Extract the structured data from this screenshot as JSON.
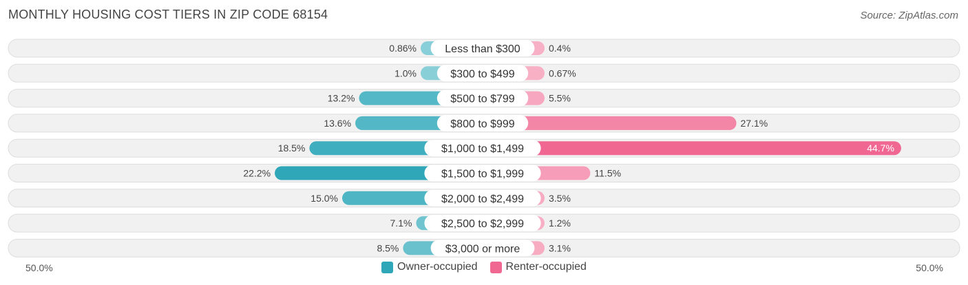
{
  "header": {
    "title": "MONTHLY HOUSING COST TIERS IN ZIP CODE 68154",
    "source": "Source: ZipAtlas.com"
  },
  "axis": {
    "left_label": "50.0%",
    "right_label": "50.0%"
  },
  "legend": {
    "owner": "Owner-occupied",
    "renter": "Renter-occupied"
  },
  "colors": {
    "owner_dark": "#2fa7b8",
    "owner_light": "#8dd1da",
    "renter_dark": "#f06892",
    "renter_light": "#f8b1c6",
    "row_bg": "#f1f1f1",
    "row_border": "#dddddd"
  },
  "chart_data": {
    "type": "bar",
    "title": "MONTHLY HOUSING COST TIERS IN ZIP CODE 68154",
    "orientation": "diverging-horizontal",
    "xlim": [
      -50,
      50
    ],
    "categories": [
      "Less than $300",
      "$300 to $499",
      "$500 to $799",
      "$800 to $999",
      "$1,000 to $1,499",
      "$1,500 to $1,999",
      "$2,000 to $2,499",
      "$2,500 to $2,999",
      "$3,000 or more"
    ],
    "series": [
      {
        "name": "Owner-occupied",
        "values": [
          0.86,
          1.0,
          13.2,
          13.6,
          18.5,
          22.2,
          15.0,
          7.1,
          8.5
        ],
        "labels": [
          "0.86%",
          "1.0%",
          "13.2%",
          "13.6%",
          "18.5%",
          "22.2%",
          "15.0%",
          "7.1%",
          "8.5%"
        ]
      },
      {
        "name": "Renter-occupied",
        "values": [
          0.4,
          0.67,
          5.5,
          27.1,
          44.7,
          11.5,
          3.5,
          1.2,
          3.1
        ],
        "labels": [
          "0.4%",
          "0.67%",
          "5.5%",
          "27.1%",
          "44.7%",
          "11.5%",
          "3.5%",
          "1.2%",
          "3.1%"
        ]
      }
    ],
    "legend_position": "bottom-center"
  }
}
